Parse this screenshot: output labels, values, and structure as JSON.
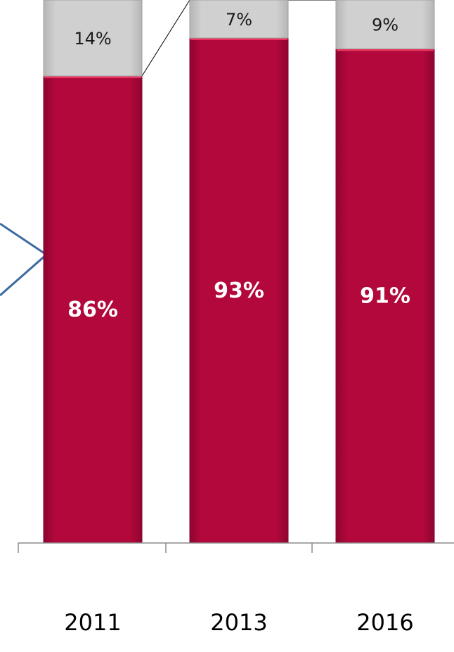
{
  "chart_data": {
    "type": "bar",
    "stacked": true,
    "categories": [
      "2011",
      "2013",
      "2016"
    ],
    "series": [
      {
        "values": [
          86,
          93,
          91
        ],
        "labels": [
          "86%",
          "93%",
          "91%"
        ]
      },
      {
        "values": [
          14,
          7,
          9
        ],
        "labels": [
          "14%",
          "7%",
          "9%"
        ]
      }
    ],
    "ylim": [
      0,
      100
    ],
    "grid": false,
    "legend": "none"
  },
  "colors": {
    "series_main": "#b0073a",
    "series_top": "#cdcdcd",
    "axis": "#8c8c8c",
    "connector": "#000000",
    "callout": "#3b6aa0"
  }
}
